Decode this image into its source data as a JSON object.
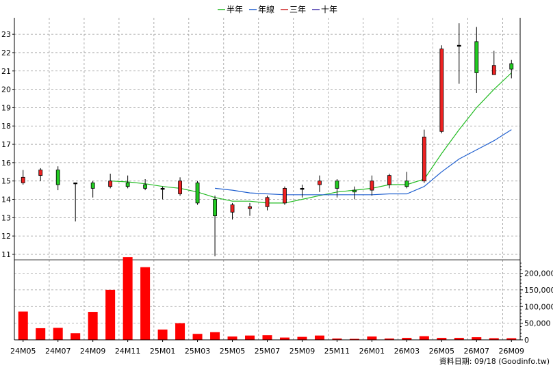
{
  "chart_data": [
    {
      "type": "candlestick",
      "legend": [
        {
          "name": "半年",
          "color": "#22bb22"
        },
        {
          "name": "年線",
          "color": "#1f5fcf"
        },
        {
          "name": "三年",
          "color": "#cc2222"
        },
        {
          "name": "十年",
          "color": "#4433aa"
        }
      ],
      "ylim": [
        10.7,
        23.9
      ],
      "y_ticks": [
        11,
        12,
        13,
        14,
        15,
        16,
        17,
        18,
        19,
        20,
        21,
        22,
        23
      ],
      "x_tick_labels": [
        "24M05",
        "24M07",
        "24M09",
        "24M11",
        "25M01",
        "25M03",
        "25M05",
        "25M07",
        "25M09",
        "25M11",
        "26M01",
        "26M03",
        "26M05",
        "26M07",
        "26M09"
      ],
      "grid": true,
      "colors": {
        "up": "#ee2222",
        "down": "#22cc22",
        "doji": "#000000"
      },
      "candles": [
        {
          "x": "24M05",
          "open": 14.9,
          "high": 15.6,
          "low": 14.8,
          "close": 15.2
        },
        {
          "x": "24M06",
          "open": 15.3,
          "high": 15.7,
          "low": 15.0,
          "close": 15.6
        },
        {
          "x": "24M07",
          "open": 15.6,
          "high": 15.8,
          "low": 14.5,
          "close": 14.8
        },
        {
          "x": "24M08",
          "open": 14.9,
          "high": 14.9,
          "low": 12.8,
          "close": 14.9
        },
        {
          "x": "24M09",
          "open": 14.9,
          "high": 15.0,
          "low": 14.1,
          "close": 14.6
        },
        {
          "x": "24M10",
          "open": 14.7,
          "high": 15.4,
          "low": 14.6,
          "close": 15.0
        },
        {
          "x": "24M11",
          "open": 14.9,
          "high": 15.3,
          "low": 14.6,
          "close": 14.7
        },
        {
          "x": "24M12",
          "open": 14.8,
          "high": 15.1,
          "low": 14.5,
          "close": 14.6
        },
        {
          "x": "25M01",
          "open": 14.6,
          "high": 14.7,
          "low": 14.0,
          "close": 14.6
        },
        {
          "x": "25M02",
          "open": 14.3,
          "high": 15.2,
          "low": 14.2,
          "close": 15.0
        },
        {
          "x": "25M03",
          "open": 14.9,
          "high": 15.0,
          "low": 13.7,
          "close": 13.8
        },
        {
          "x": "25M04",
          "open": 14.0,
          "high": 14.2,
          "low": 10.9,
          "close": 13.1
        },
        {
          "x": "25M05",
          "open": 13.3,
          "high": 13.8,
          "low": 12.9,
          "close": 13.7
        },
        {
          "x": "25M06",
          "open": 13.5,
          "high": 13.8,
          "low": 13.1,
          "close": 13.6
        },
        {
          "x": "25M07",
          "open": 13.6,
          "high": 14.2,
          "low": 13.4,
          "close": 14.1
        },
        {
          "x": "25M08",
          "open": 13.8,
          "high": 14.7,
          "low": 13.7,
          "close": 14.6
        },
        {
          "x": "25M09",
          "open": 14.6,
          "high": 14.8,
          "low": 14.1,
          "close": 14.6
        },
        {
          "x": "25M10",
          "open": 14.8,
          "high": 15.3,
          "low": 14.4,
          "close": 15.0
        },
        {
          "x": "25M11",
          "open": 15.0,
          "high": 15.1,
          "low": 14.1,
          "close": 14.6
        },
        {
          "x": "25M12",
          "open": 14.5,
          "high": 14.7,
          "low": 14.0,
          "close": 14.4
        },
        {
          "x": "26M01",
          "open": 14.5,
          "high": 15.3,
          "low": 14.2,
          "close": 15.0
        },
        {
          "x": "26M02",
          "open": 14.8,
          "high": 15.4,
          "low": 14.6,
          "close": 15.3
        },
        {
          "x": "26M03",
          "open": 15.0,
          "high": 15.5,
          "low": 14.6,
          "close": 14.7
        },
        {
          "x": "26M04",
          "open": 15.0,
          "high": 17.8,
          "low": 14.9,
          "close": 17.4
        },
        {
          "x": "26M05",
          "open": 17.7,
          "high": 22.4,
          "low": 17.6,
          "close": 22.2
        },
        {
          "x": "26M06",
          "open": 22.4,
          "high": 23.6,
          "low": 20.3,
          "close": 22.4
        },
        {
          "x": "26M07",
          "open": 22.6,
          "high": 23.4,
          "low": 19.8,
          "close": 20.9
        },
        {
          "x": "26M08",
          "open": 20.8,
          "high": 22.1,
          "low": 20.8,
          "close": 21.3
        },
        {
          "x": "26M09",
          "open": 21.4,
          "high": 21.6,
          "low": 20.6,
          "close": 21.1
        }
      ],
      "series": [
        {
          "name": "半年",
          "start_index": 5,
          "values": [
            15.0,
            14.95,
            14.85,
            14.7,
            14.6,
            14.4,
            14.1,
            13.9,
            13.9,
            13.8,
            13.8,
            14.0,
            14.2,
            14.4,
            14.5,
            14.6,
            14.8,
            14.8,
            15.1,
            16.5,
            17.8,
            19.0,
            20.0,
            20.9
          ]
        },
        {
          "name": "年線",
          "start_index": 11,
          "values": [
            14.6,
            14.5,
            14.35,
            14.3,
            14.25,
            14.25,
            14.25,
            14.25,
            14.25,
            14.25,
            14.3,
            14.3,
            14.7,
            15.5,
            16.2,
            16.7,
            17.2,
            17.8
          ]
        }
      ]
    },
    {
      "type": "bar",
      "ylim": [
        0,
        240000
      ],
      "y_ticks": [
        0,
        50000,
        100000,
        150000,
        200000
      ],
      "y_tick_labels": [
        "0",
        "50,000",
        "100,000",
        "150,000",
        "200,000"
      ],
      "color": "#ff0000",
      "values": [
        85000,
        35000,
        36000,
        20000,
        84000,
        150000,
        248000,
        218000,
        31000,
        50000,
        18000,
        23000,
        10000,
        13000,
        14000,
        7000,
        9000,
        13000,
        4000,
        3000,
        10000,
        4000,
        6000,
        11000,
        6000,
        6000,
        8000,
        5000,
        5000
      ]
    }
  ],
  "footer": {
    "source": "資料日期: 09/18  (Goodinfo.tw)"
  }
}
